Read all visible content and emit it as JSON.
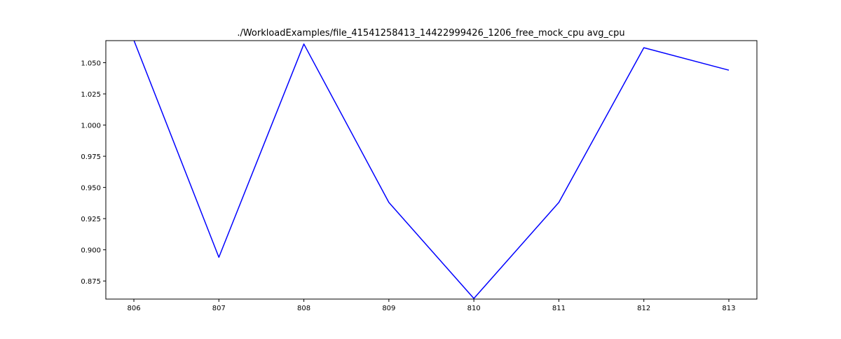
{
  "chart_data": {
    "type": "line",
    "title": "./WorkloadExamples/file_41541258413_14422999426_1206_free_mock_cpu avg_cpu",
    "xlabel": "",
    "ylabel": "",
    "x": [
      806,
      807,
      808,
      809,
      810,
      811,
      812,
      813
    ],
    "series": [
      {
        "values": [
          1.068,
          0.894,
          1.065,
          0.938,
          0.861,
          0.938,
          1.062,
          1.044
        ],
        "color": "#0000ff"
      }
    ],
    "xlim": [
      805.67,
      813.33
    ],
    "ylim": [
      0.8605,
      1.0677
    ],
    "xticks": [
      "806",
      "807",
      "808",
      "809",
      "810",
      "811",
      "812",
      "813"
    ],
    "yticks": [
      {
        "value": 0.875,
        "label": "0.875"
      },
      {
        "value": 0.9,
        "label": "0.900"
      },
      {
        "value": 0.925,
        "label": "0.925"
      },
      {
        "value": 0.95,
        "label": "0.950"
      },
      {
        "value": 0.975,
        "label": "0.975"
      },
      {
        "value": 1.0,
        "label": "1.000"
      },
      {
        "value": 1.025,
        "label": "1.025"
      },
      {
        "value": 1.05,
        "label": "1.050"
      }
    ],
    "grid": false,
    "legend": "none"
  }
}
